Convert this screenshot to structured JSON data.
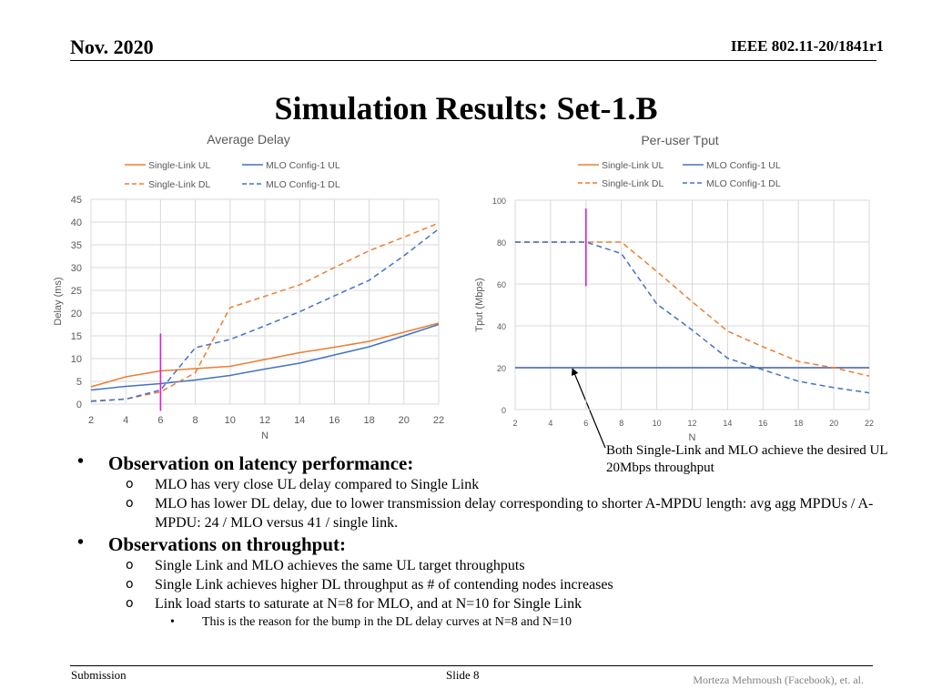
{
  "header": {
    "date": "Nov. 2020",
    "doc_id": "IEEE 802.11-20/1841r1"
  },
  "slide_title": "Simulation Results: Set-1.B",
  "annotation": {
    "line1": "Both Single-Link and MLO achieve the desired UL",
    "line2": "20Mbps throughput"
  },
  "colors": {
    "single_link": "#ED7D31",
    "mlo": "#4472C4",
    "marker": "#D61FD6",
    "grid": "#D9D9D9",
    "axis_text": "#595959"
  },
  "chart_data": [
    {
      "type": "line",
      "title": "Average Delay",
      "xlabel": "N",
      "ylabel": "Delay (ms)",
      "x": [
        2,
        4,
        6,
        8,
        10,
        12,
        14,
        16,
        18,
        20,
        22
      ],
      "xlim": [
        2,
        22
      ],
      "ylim": [
        0,
        45
      ],
      "yticks": [
        0,
        5,
        10,
        15,
        20,
        25,
        30,
        35,
        40,
        45
      ],
      "grid": true,
      "legend_position": "top",
      "series": [
        {
          "name": "Single-Link UL",
          "color": "#ED7D31",
          "dash": "solid",
          "values": [
            3.8,
            6.0,
            7.3,
            7.8,
            8.3,
            9.8,
            11.3,
            12.5,
            13.8,
            15.8,
            17.8
          ]
        },
        {
          "name": "MLO Config-1 UL",
          "color": "#4472C4",
          "dash": "solid",
          "values": [
            3.1,
            3.9,
            4.5,
            5.3,
            6.3,
            7.7,
            9.0,
            10.8,
            12.6,
            15.0,
            17.5
          ]
        },
        {
          "name": "Single-Link DL",
          "color": "#ED7D31",
          "dash": "dashed",
          "values": [
            0.7,
            1.1,
            2.7,
            6.9,
            21.2,
            23.7,
            26.2,
            30.0,
            33.7,
            36.7,
            39.8
          ]
        },
        {
          "name": "MLO Config-1 DL",
          "color": "#4472C4",
          "dash": "dashed",
          "values": [
            0.6,
            1.1,
            3.1,
            12.4,
            14.2,
            17.2,
            20.3,
            23.8,
            27.2,
            32.6,
            38.5
          ]
        }
      ],
      "marker_line": {
        "x": 6,
        "y_from": -1.5,
        "y_to": 15.5
      }
    },
    {
      "type": "line",
      "title": "Per-user Tput",
      "xlabel": "N",
      "ylabel": "Tput (Mbps)",
      "x": [
        2,
        4,
        6,
        8,
        10,
        12,
        14,
        16,
        18,
        20,
        22
      ],
      "xlim": [
        2,
        22
      ],
      "ylim": [
        0,
        100
      ],
      "yticks": [
        0,
        20,
        40,
        60,
        80,
        100
      ],
      "grid": true,
      "legend_position": "top",
      "series": [
        {
          "name": "Single-Link UL",
          "color": "#ED7D31",
          "dash": "solid",
          "values": [
            20,
            20,
            20,
            20,
            20,
            20,
            20,
            20,
            20,
            20,
            20
          ]
        },
        {
          "name": "MLO Config-1 UL",
          "color": "#4472C4",
          "dash": "solid",
          "values": [
            20,
            20,
            20,
            20,
            20,
            20,
            20,
            20,
            20,
            20,
            20
          ]
        },
        {
          "name": "Single-Link DL",
          "color": "#ED7D31",
          "dash": "dashed",
          "values": [
            80,
            80,
            80,
            80,
            66,
            51.5,
            37.5,
            30,
            23,
            20,
            16
          ]
        },
        {
          "name": "MLO Config-1 DL",
          "color": "#4472C4",
          "dash": "dashed",
          "values": [
            80,
            80,
            80,
            74.5,
            50.5,
            38,
            24.5,
            19,
            13.5,
            10.5,
            8
          ]
        }
      ],
      "marker_line": {
        "x": 6,
        "y_from": 59,
        "y_to": 96
      }
    }
  ],
  "bullets": [
    {
      "text": "Observation on latency performance:",
      "subs": [
        {
          "text": "MLO has very close UL delay compared to Single Link"
        },
        {
          "text": "MLO has lower DL delay, due to lower transmission delay corresponding to shorter A-MPDU length: avg agg MPDUs / A-MPDU: 24 / MLO versus 41 / single link."
        }
      ]
    },
    {
      "text": "Observations on throughput:",
      "subs": [
        {
          "text": "Single Link and MLO achieves the same UL target throughputs"
        },
        {
          "text": "Single Link achieves higher DL throughput as # of contending nodes increases"
        },
        {
          "text": "Link load starts to saturate at N=8 for MLO, and at N=10 for Single Link",
          "subs": [
            {
              "text": "This is the reason for the bump in the DL delay curves at N=8 and N=10"
            }
          ]
        }
      ]
    }
  ],
  "footer": {
    "left": "Submission",
    "center": "Slide 8",
    "right": "Morteza Mehrnoush (Facebook), et. al."
  }
}
